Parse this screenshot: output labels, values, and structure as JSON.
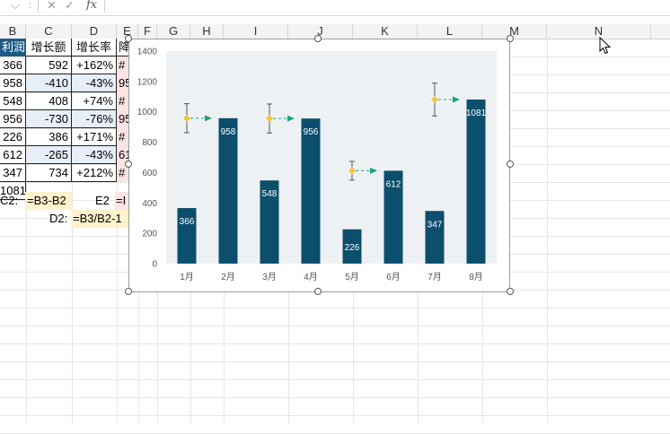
{
  "formula_bar": {
    "fx_label": "fx",
    "name_box_dropdown": "⌵",
    "cancel_glyph": "✕",
    "confirm_glyph": "✓",
    "more_glyph": ":"
  },
  "columns": [
    "B",
    "C",
    "D",
    "E",
    "F",
    "G",
    "H",
    "I",
    "J",
    "K",
    "L",
    "M",
    "N"
  ],
  "table": {
    "headers": [
      "利润",
      "增长额",
      "增长率",
      "降"
    ],
    "rows": [
      [
        "366",
        "592",
        "+162%",
        "#"
      ],
      [
        "958",
        "-410",
        "-43%",
        "95"
      ],
      [
        "548",
        "408",
        "+74%",
        "#"
      ],
      [
        "956",
        "-730",
        "-76%",
        "95"
      ],
      [
        "226",
        "386",
        "+171%",
        "#"
      ],
      [
        "612",
        "-265",
        "-43%",
        "61"
      ],
      [
        "347",
        "734",
        "+212%",
        "#"
      ],
      [
        "1081",
        "",
        "",
        ""
      ]
    ]
  },
  "formulas": {
    "c2_label": "C2:",
    "c2_formula": "=B3-B2",
    "e2_label": "E2",
    "e2_formula": "=I",
    "d2_label": "D2:",
    "d2_formula": "=B3/B2-1"
  },
  "chart_data": {
    "type": "bar",
    "categories": [
      "1月",
      "2月",
      "3月",
      "4月",
      "5月",
      "6月",
      "7月",
      "8月"
    ],
    "values": [
      366,
      958,
      548,
      956,
      226,
      612,
      347,
      1081
    ],
    "ylim": [
      0,
      1400
    ],
    "yticks": [
      0,
      200,
      400,
      600,
      800,
      1000,
      1200,
      1400
    ],
    "markers": [
      {
        "category": "1月",
        "value": 958
      },
      {
        "category": "3月",
        "value": 956
      },
      {
        "category": "5月",
        "value": 612
      },
      {
        "category": "7月",
        "value": 1081
      }
    ],
    "bar_color": "#0c4f6c",
    "marker_color": "#f5c542",
    "arrow_color": "#1aa37a",
    "plot_bg": "#eef1f4",
    "title": "",
    "xlabel": "",
    "ylabel": ""
  },
  "colors": {
    "header_blue": "#1f5a85",
    "formula_yellow": "#fff2cc",
    "formula_pink": "#fde4e4"
  }
}
